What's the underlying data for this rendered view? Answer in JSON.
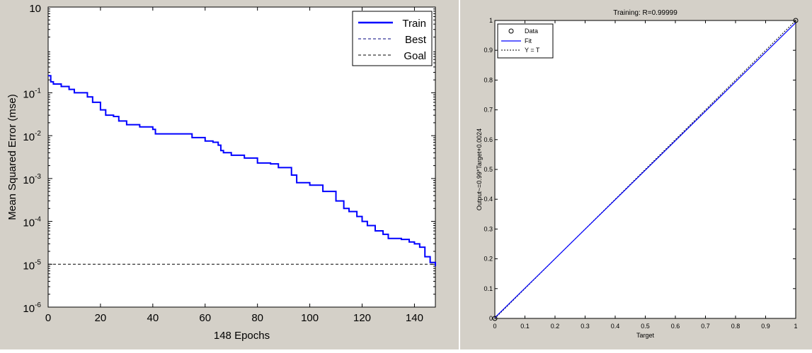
{
  "colors": {
    "figure_bg": "#d4d0c8",
    "axes_bg": "#ffffff",
    "train_line": "#0000ff",
    "best_line": "#00007f",
    "goal_line": "#000000",
    "fit_line": "#0000ff"
  },
  "chart_data": [
    {
      "type": "line",
      "title": "",
      "xlabel": "148 Epochs",
      "ylabel": "Mean Squared Error  (mse)",
      "yscale": "log",
      "xlim": [
        0,
        148
      ],
      "ylim": [
        1e-06,
        10
      ],
      "xticks": [
        0,
        20,
        40,
        60,
        80,
        100,
        120,
        140
      ],
      "xtick_labels": [
        "0",
        "20",
        "40",
        "60",
        "80",
        "100",
        "120",
        "140"
      ],
      "yticks": [
        1e-06,
        1e-05,
        0.0001,
        0.001,
        0.01,
        0.1,
        10
      ],
      "ytick_labels": [
        {
          "base": "10",
          "exp": "-6"
        },
        {
          "base": "10",
          "exp": "-5"
        },
        {
          "base": "10",
          "exp": "-4"
        },
        {
          "base": "10",
          "exp": "-3"
        },
        {
          "base": "10",
          "exp": "-2"
        },
        {
          "base": "10",
          "exp": "-1"
        },
        {
          "base": "10",
          "exp": ""
        }
      ],
      "legend_position": "top-right",
      "legend": [
        "Train",
        "Best",
        "Goal"
      ],
      "series": [
        {
          "name": "Train",
          "x": [
            0,
            1,
            2,
            5,
            8,
            10,
            12,
            14,
            15,
            17,
            18,
            20,
            22,
            25,
            27,
            30,
            35,
            40,
            41,
            45,
            50,
            55,
            60,
            63,
            65,
            66,
            67,
            70,
            75,
            80,
            85,
            88,
            89,
            90,
            92,
            93,
            95,
            100,
            105,
            107,
            110,
            113,
            115,
            118,
            120,
            122,
            125,
            128,
            130,
            135,
            138,
            140,
            142,
            144,
            146,
            148
          ],
          "y": [
            0.25,
            0.18,
            0.16,
            0.14,
            0.12,
            0.1,
            0.1,
            0.1,
            0.08,
            0.06,
            0.06,
            0.04,
            0.03,
            0.028,
            0.022,
            0.018,
            0.016,
            0.014,
            0.011,
            0.011,
            0.011,
            0.009,
            0.0075,
            0.007,
            0.006,
            0.0045,
            0.004,
            0.0035,
            0.003,
            0.0023,
            0.0022,
            0.0018,
            0.0018,
            0.0018,
            0.0018,
            0.0012,
            0.0008,
            0.0007,
            0.0005,
            0.0005,
            0.0003,
            0.0002,
            0.00017,
            0.00013,
            0.0001,
            8e-05,
            6e-05,
            5e-05,
            4e-05,
            3.8e-05,
            3.3e-05,
            3e-05,
            2.5e-05,
            1.5e-05,
            1.1e-05,
            9e-06
          ]
        },
        {
          "name": "Goal",
          "x": [
            0,
            148
          ],
          "y": [
            1e-05,
            1e-05
          ]
        }
      ]
    },
    {
      "type": "scatter",
      "title": "Training: R=0.99999",
      "xlabel": "Target",
      "ylabel": "Output~=0.99*Target+0.0024",
      "xlim": [
        0,
        1
      ],
      "ylim": [
        0,
        1
      ],
      "xticks": [
        0,
        0.1,
        0.2,
        0.3,
        0.4,
        0.5,
        0.6,
        0.7,
        0.8,
        0.9,
        1
      ],
      "xtick_labels": [
        "0",
        "0.1",
        "0.2",
        "0.3",
        "0.4",
        "0.5",
        "0.6",
        "0.7",
        "0.8",
        "0.9",
        "1"
      ],
      "yticks": [
        0,
        0.1,
        0.2,
        0.3,
        0.4,
        0.5,
        0.6,
        0.7,
        0.8,
        0.9,
        1
      ],
      "ytick_labels": [
        "0",
        "0.1",
        "0.2",
        "0.3",
        "0.4",
        "0.5",
        "0.6",
        "0.7",
        "0.8",
        "0.9",
        "1"
      ],
      "legend_position": "top-left",
      "legend": [
        "Data",
        "Fit",
        "Y = T"
      ],
      "series": [
        {
          "name": "Data",
          "x": [
            0,
            1
          ],
          "y": [
            0,
            1
          ]
        },
        {
          "name": "Fit",
          "x": [
            0,
            1
          ],
          "y": [
            0.0024,
            0.9924
          ]
        },
        {
          "name": "Y = T",
          "x": [
            0,
            1
          ],
          "y": [
            0,
            1
          ]
        }
      ]
    }
  ]
}
